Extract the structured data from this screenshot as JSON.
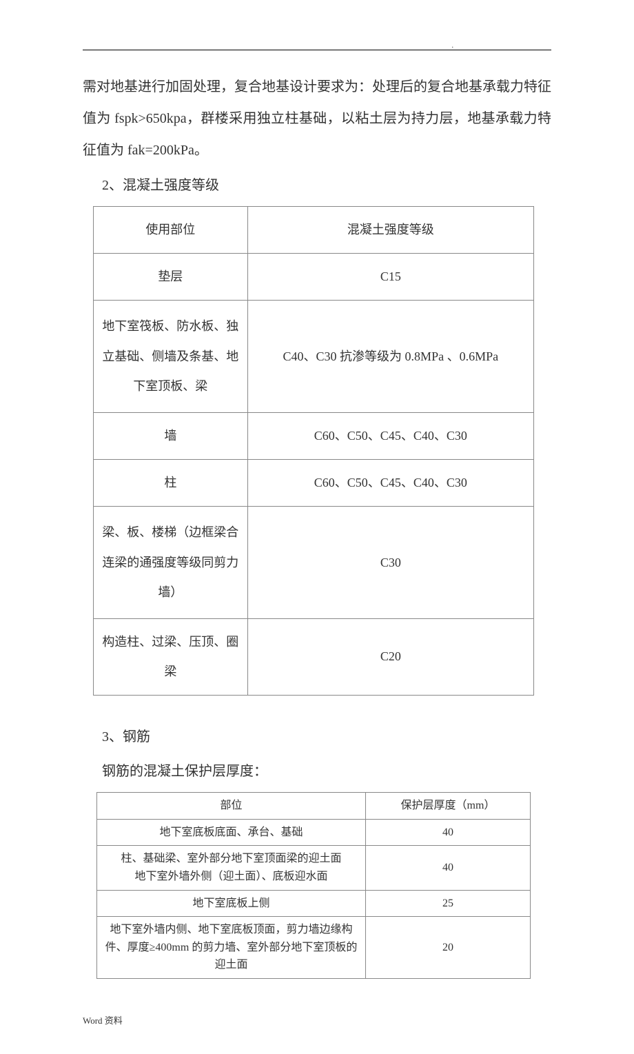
{
  "body_paragraph": "需对地基进行加固处理，复合地基设计要求为：处理后的复合地基承载力特征值为 fspk>650kpa，群楼采用独立柱基础，以粘土层为持力层，地基承载力特征值为 fak=200kPa。",
  "section2_heading": "2、混凝土强度等级",
  "table1": {
    "header": {
      "col1": "使用部位",
      "col2": "混凝土强度等级"
    },
    "rows": [
      {
        "col1": "垫层",
        "col2": "C15"
      },
      {
        "col1": "地下室筏板、防水板、独立基础、侧墙及条基、地下室顶板、梁",
        "col2": "C40、C30 抗渗等级为 0.8MPa 、0.6MPa"
      },
      {
        "col1": "墙",
        "col2": "C60、C50、C45、C40、C30"
      },
      {
        "col1": "柱",
        "col2": "C60、C50、C45、C40、C30"
      },
      {
        "col1": "梁、板、楼梯（边框梁合连梁的通强度等级同剪力墙）",
        "col2": "C30"
      },
      {
        "col1": "构造柱、过梁、压顶、圈梁",
        "col2": "C20"
      }
    ]
  },
  "section3_heading": "3、钢筋",
  "section3_sub": "钢筋的混凝土保护层厚度：",
  "table2": {
    "header": {
      "col1": "部位",
      "col2": "保护层厚度（mm）"
    },
    "rows": [
      {
        "col1": "地下室底板底面、承台、基础",
        "col2": "40"
      },
      {
        "col1": "柱、基础梁、室外部分地下室顶面梁的迎土面\n地下室外墙外侧（迎土面）、底板迎水面",
        "col2": "40"
      },
      {
        "col1": "地下室底板上侧",
        "col2": "25"
      },
      {
        "col1": "地下室外墙内侧、地下室底板顶面，剪力墙边缘构件、厚度≥400mm 的剪力墙、室外部分地下室顶板的迎土面",
        "col2": "20"
      }
    ]
  },
  "footer": "Word 资料",
  "header_dot": "."
}
